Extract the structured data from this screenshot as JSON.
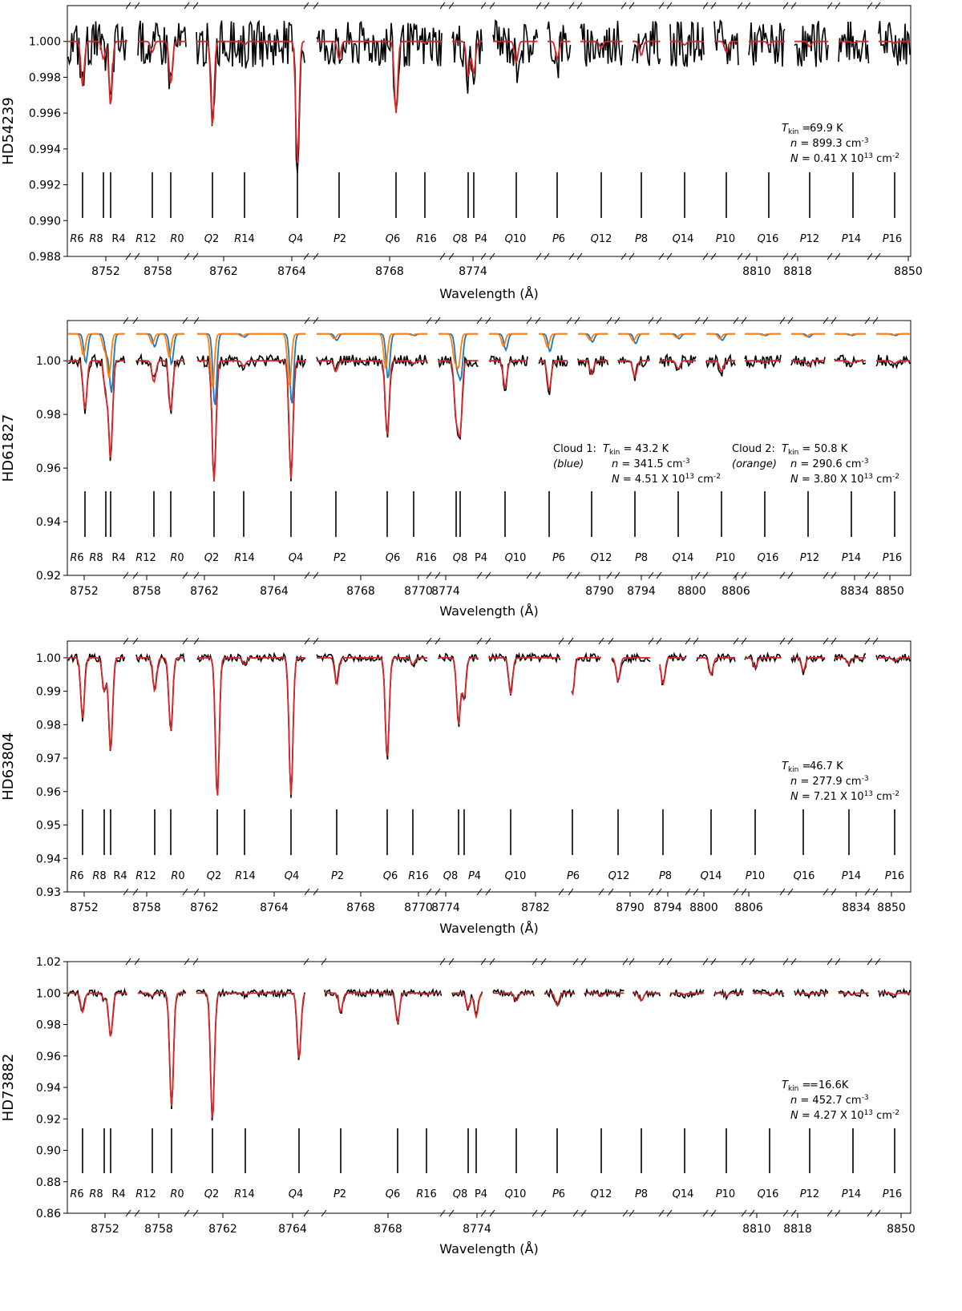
{
  "figure": {
    "xlabel": "Wavelength (Å)",
    "line_labels": [
      "R6",
      "R8",
      "R4",
      "R12",
      "R0",
      "Q2",
      "R14",
      "Q4",
      "P2",
      "Q6",
      "R16",
      "Q8",
      "P4",
      "Q10",
      "P6",
      "Q12",
      "P8",
      "Q14",
      "P10",
      "Q16",
      "P12",
      "P14",
      "P16"
    ],
    "colors": {
      "observed": "#000000",
      "model": "#d62728",
      "cloud1": "#1f77b4",
      "cloud2": "#ff7f0e"
    }
  },
  "chart_data": [
    {
      "type": "line",
      "ylabel": "HD54239",
      "ylim": [
        0.988,
        1.002
      ],
      "yticks": [
        0.988,
        0.99,
        0.992,
        0.994,
        0.996,
        0.998,
        1.0
      ],
      "xtick_labels": [
        "8752",
        "8758",
        "8762",
        "8764",
        "8768",
        "8774",
        "8810",
        "8818",
        "8850"
      ],
      "model_depths": {
        "R6": 0.0025,
        "R8": 0.001,
        "R4": 0.0036,
        "R12": 0.0006,
        "R0": 0.0024,
        "Q2": 0.0048,
        "R14": 0.0002,
        "Q4": 0.0068,
        "P2": 0.001,
        "Q6": 0.004,
        "R16": 0.0001,
        "Q8": 0.002,
        "P4": 0.0018,
        "Q10": 0.0012,
        "P6": 0.001,
        "Q12": 0.0004,
        "P8": 0.0008,
        "Q14": 0.0002,
        "P10": 0.0006,
        "Q16": 0.0002,
        "P12": 0.0003,
        "P14": 0.0001,
        "P16": 0.0001
      },
      "annotation": {
        "tkin": "69.9 K",
        "n": "899.3",
        "N": "0.41 X 10"
      }
    },
    {
      "type": "line",
      "ylabel": "HD61827",
      "ylim": [
        0.92,
        1.015
      ],
      "yticks": [
        0.92,
        0.94,
        0.96,
        0.98,
        1.0
      ],
      "xtick_labels": [
        "8752",
        "8758",
        "8762",
        "8764",
        "8768",
        "8770",
        "8774",
        "8790",
        "8794",
        "8800",
        "8806",
        "8834",
        "8850"
      ],
      "model_depths": {
        "R6": 0.018,
        "R8": 0.012,
        "R4": 0.036,
        "R12": 0.008,
        "R0": 0.019,
        "Q2": 0.045,
        "R14": 0.002,
        "Q4": 0.044,
        "P2": 0.004,
        "Q6": 0.028,
        "R16": 0.001,
        "Q8": 0.02,
        "P4": 0.026,
        "Q10": 0.01,
        "P6": 0.011,
        "Q12": 0.005,
        "P8": 0.006,
        "Q14": 0.003,
        "P10": 0.004,
        "Q16": 0.001,
        "P12": 0.002,
        "P14": 0.001,
        "P16": 0.001
      },
      "annotation": {
        "cloud1_label": "Cloud 1:",
        "cloud1_color": "(blue)",
        "cloud1_tkin": "43.2 K",
        "cloud1_n": "341.5",
        "cloud1_N": "4.51 X 10",
        "cloud2_label": "Cloud 2:",
        "cloud2_color": "(orange)",
        "cloud2_tkin": "50.8 K",
        "cloud2_n": "290.6",
        "cloud2_N": "3.80 X 10"
      }
    },
    {
      "type": "line",
      "ylabel": "HD63804",
      "ylim": [
        0.93,
        1.005
      ],
      "yticks": [
        0.93,
        0.94,
        0.95,
        0.96,
        0.97,
        0.98,
        0.99,
        1.0
      ],
      "xtick_labels": [
        "8752",
        "8758",
        "8762",
        "8764",
        "8768",
        "8770",
        "8774",
        "8782",
        "8790",
        "8794",
        "8800",
        "8806",
        "8834",
        "8850"
      ],
      "model_depths": {
        "R6": 0.018,
        "R8": 0.01,
        "R4": 0.028,
        "R12": 0.01,
        "R0": 0.022,
        "Q2": 0.042,
        "R14": 0.002,
        "Q4": 0.041,
        "P2": 0.008,
        "Q6": 0.03,
        "R16": 0.002,
        "Q8": 0.02,
        "P4": 0.012,
        "Q10": 0.011,
        "P6": 0.011,
        "Q12": 0.007,
        "P8": 0.008,
        "Q14": 0.005,
        "P10": 0.003,
        "Q16": 0.004,
        "P14": 0.002,
        "P16": 0.001
      },
      "annotation": {
        "tkin": "46.7 K",
        "n": "277.9",
        "N": "7.21 X 10"
      }
    },
    {
      "type": "line",
      "ylabel": "HD73882",
      "ylim": [
        0.86,
        1.02
      ],
      "yticks": [
        0.86,
        0.88,
        0.9,
        0.92,
        0.94,
        0.96,
        0.98,
        1.0,
        1.02
      ],
      "xtick_labels": [
        "8752",
        "8758",
        "8762",
        "8764",
        "8768",
        "8774",
        "8810",
        "8818",
        "8850"
      ],
      "model_depths": {
        "R6": 0.012,
        "R8": 0.004,
        "R4": 0.028,
        "R12": 0.002,
        "R0": 0.072,
        "Q2": 0.081,
        "R14": 0.001,
        "Q4": 0.042,
        "P2": 0.012,
        "Q6": 0.019,
        "R16": 0.001,
        "Q8": 0.01,
        "P4": 0.015,
        "Q10": 0.005,
        "P6": 0.008,
        "Q12": 0.002,
        "P8": 0.005,
        "Q14": 0.001,
        "P10": 0.002,
        "Q16": 0.001,
        "P12": 0.001,
        "P14": 0.001,
        "P16": 0.001
      },
      "annotation": {
        "tkin": "=16.6K",
        "n": "452.7",
        "N": "4.27 X 10"
      }
    }
  ]
}
